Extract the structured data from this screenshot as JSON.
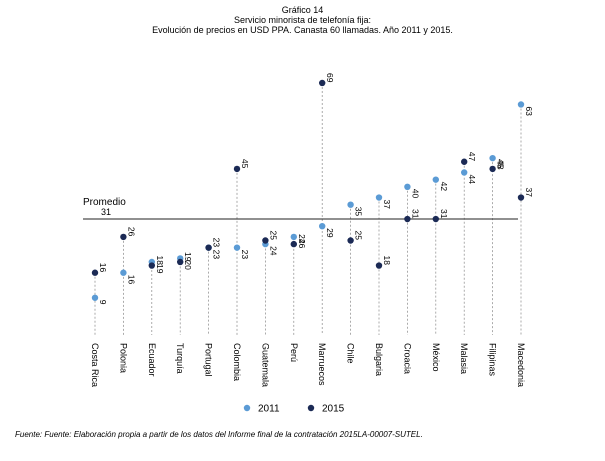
{
  "chart_data": {
    "type": "dot",
    "title": "Gráfico 14",
    "subtitle_lines": [
      "Servicio minorista de telefonía fija:",
      "Evolución de precios en USD PPA. Canasta 60 llamadas. Año 2011 y 2015."
    ],
    "categories": [
      "Costa Rica",
      "Polonia",
      "Ecuador",
      "Turquía",
      "Portugal",
      "Colombia",
      "Guatemala",
      "Perú",
      "Marruecos",
      "Chile",
      "Bulgaria",
      "Croacia",
      "México",
      "Malasia",
      "Filipinas",
      "Macedonia"
    ],
    "series": [
      {
        "name": "2011",
        "color": "#5b9bd5",
        "values": [
          9,
          16,
          19,
          20,
          23,
          23,
          24,
          26,
          29,
          35,
          37,
          40,
          42,
          44,
          48,
          63
        ]
      },
      {
        "name": "2015",
        "color": "#1b2a55",
        "values": [
          16,
          26,
          18,
          19,
          23,
          45,
          25,
          24,
          69,
          25,
          18,
          31,
          31,
          47,
          45,
          37
        ]
      }
    ],
    "reference_line": {
      "label": "Promedio",
      "value": 31,
      "value_label": "31"
    },
    "ylim": [
      0,
      70
    ],
    "legend_position": "bottom",
    "grid": false,
    "source": "Fuente: Fuente: Elaboración propia a partir de los datos del Informe final de la contratación 2015LA-00007-SUTEL."
  }
}
